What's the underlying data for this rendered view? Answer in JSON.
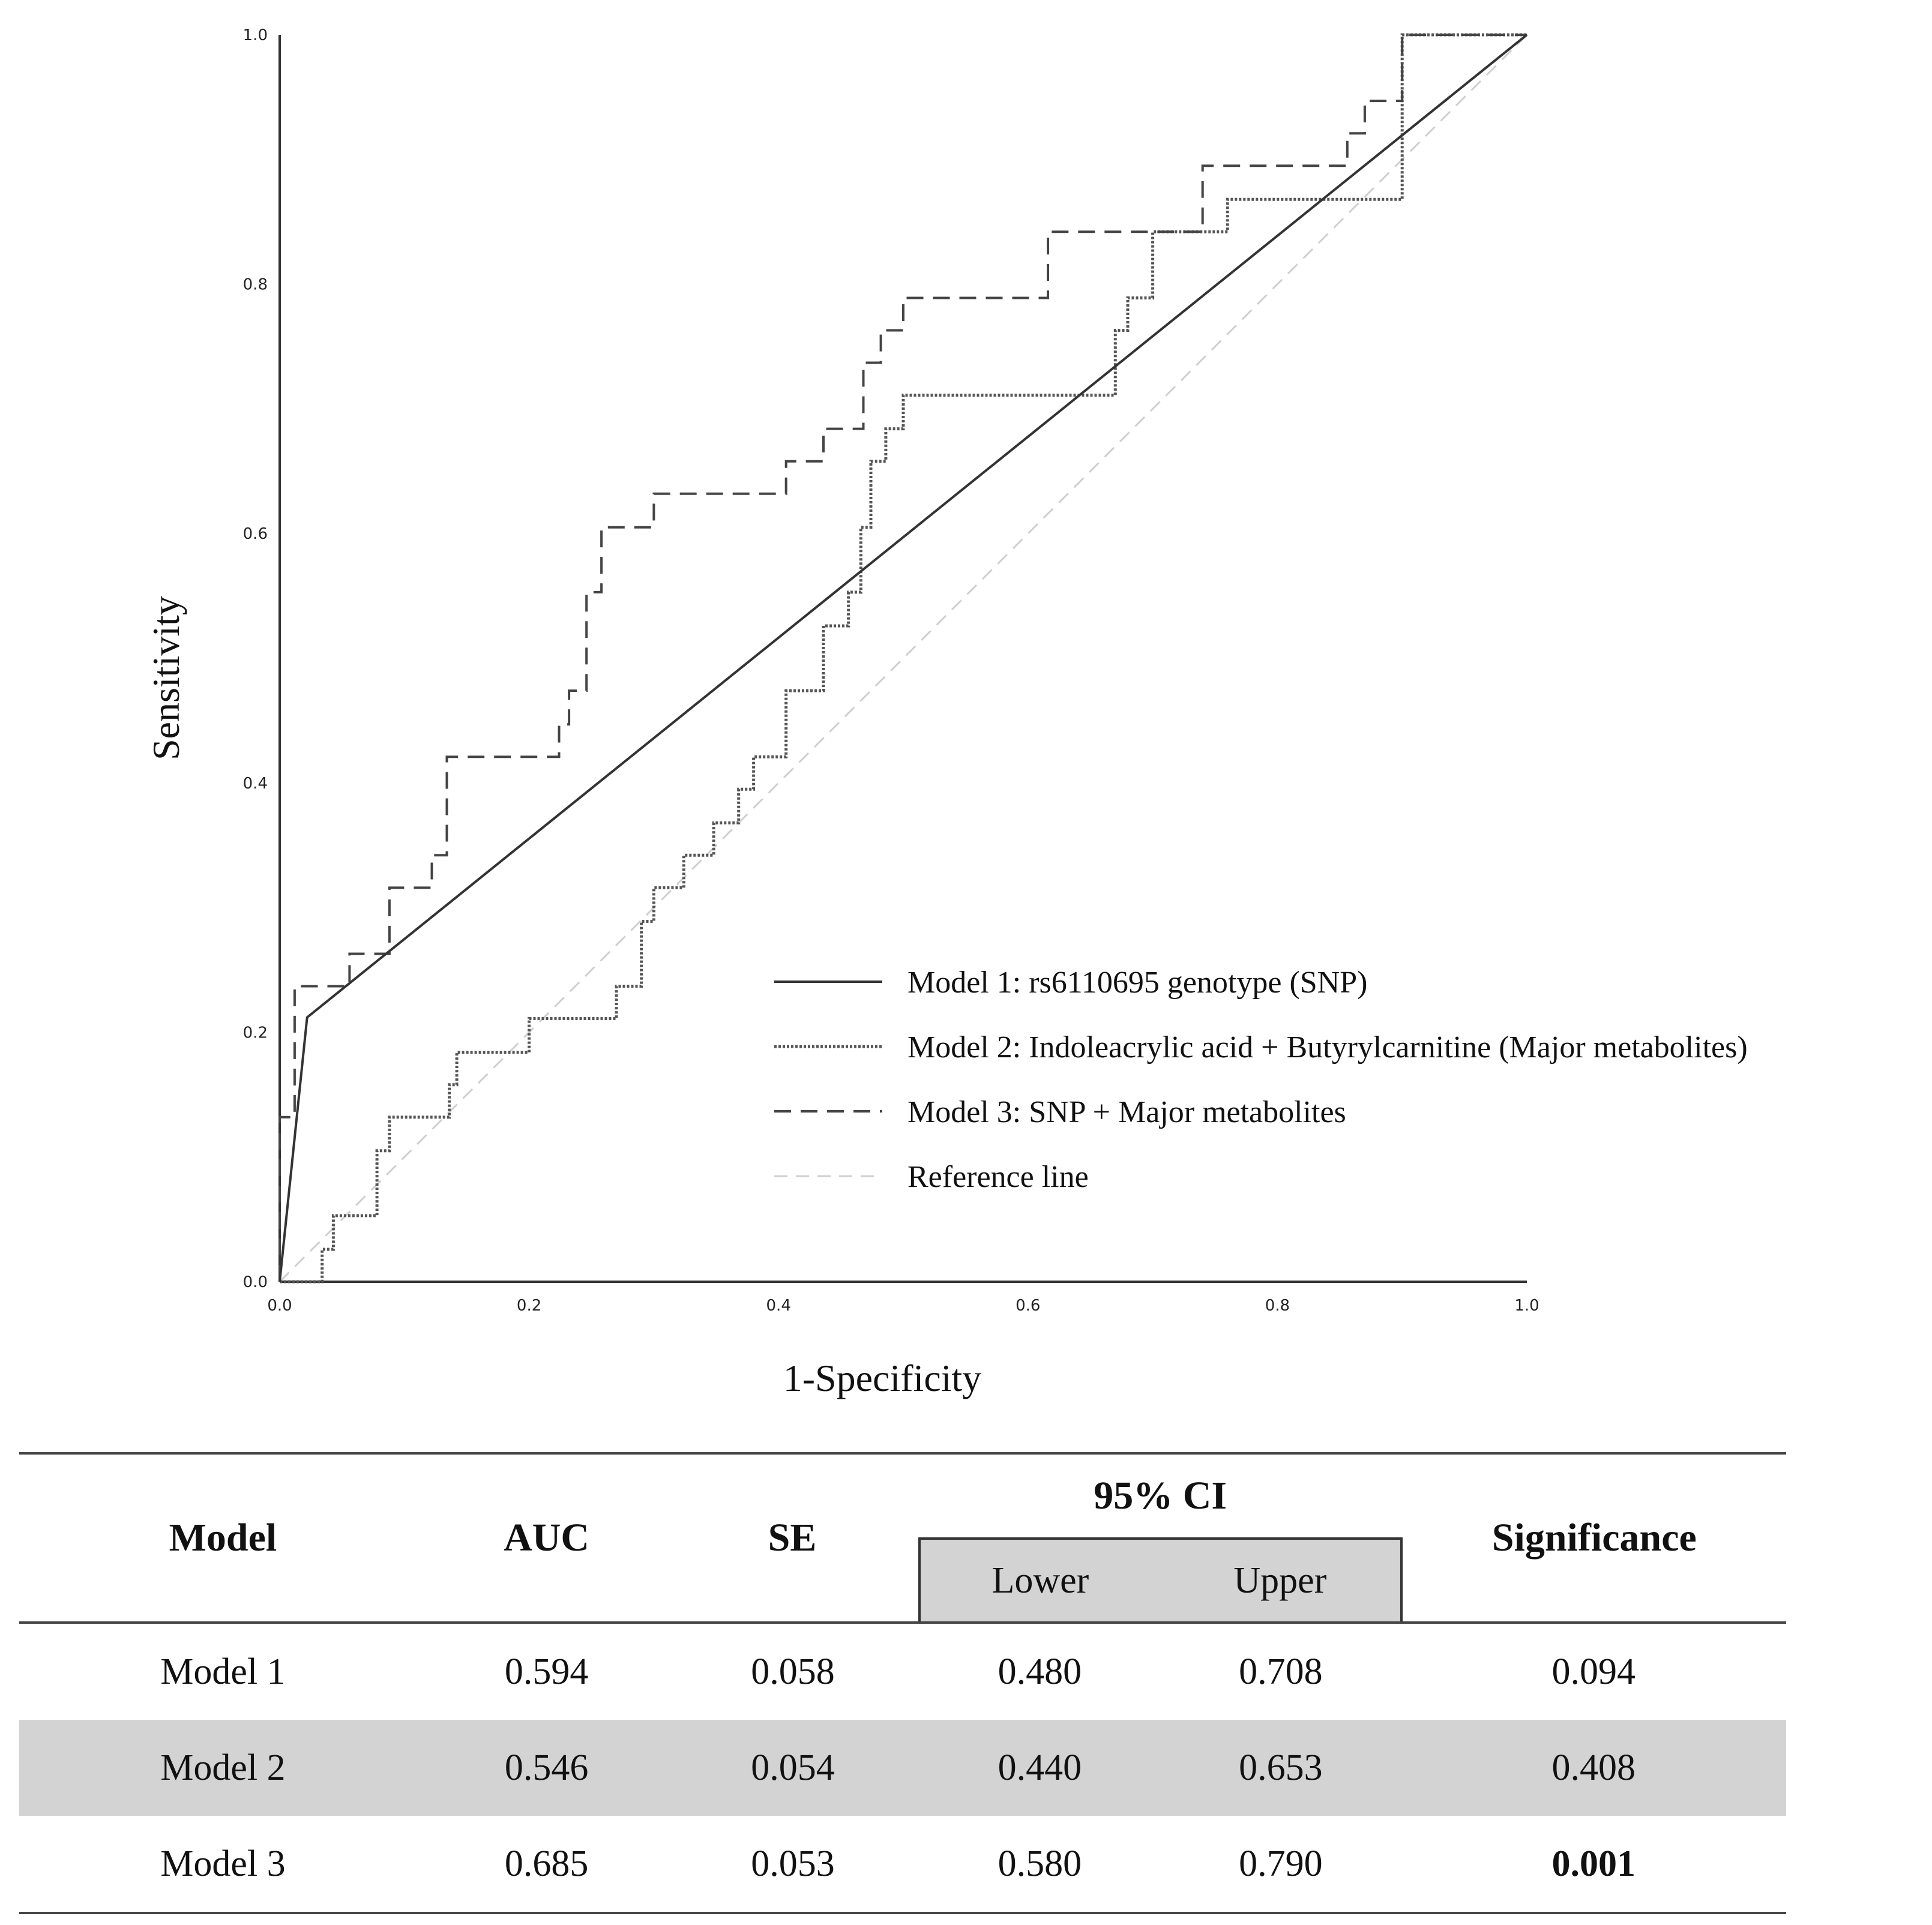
{
  "chart_data": {
    "type": "line",
    "title": "",
    "xlabel": "1-Specificity",
    "ylabel": "Sensitivity",
    "xlim": [
      0,
      1
    ],
    "ylim": [
      0,
      1
    ],
    "xticks": [
      "0.0",
      "0.2",
      "0.4",
      "0.6",
      "0.8",
      "1.0"
    ],
    "yticks": [
      "0.0",
      "0.2",
      "0.4",
      "0.6",
      "0.8",
      "1.0"
    ],
    "legend_position": "lower-right",
    "series": [
      {
        "name": "Model 1: rs6110695 genotype (SNP)",
        "style": "solid",
        "color": "#333333",
        "x": [
          0,
          0.022,
          1
        ],
        "y": [
          0,
          0.212,
          1
        ]
      },
      {
        "name": "Model 2: Indoleacrylic acid + Butyrylcarnitine (Major metabolites)",
        "style": "dotted",
        "color": "#555555",
        "x": [
          0,
          0.034,
          0.034,
          0.043,
          0.043,
          0.078,
          0.078,
          0.088,
          0.088,
          0.136,
          0.136,
          0.142,
          0.142,
          0.2,
          0.2,
          0.27,
          0.27,
          0.29,
          0.29,
          0.3,
          0.3,
          0.324,
          0.324,
          0.348,
          0.348,
          0.368,
          0.368,
          0.38,
          0.38,
          0.406,
          0.406,
          0.436,
          0.436,
          0.456,
          0.456,
          0.466,
          0.466,
          0.474,
          0.474,
          0.486,
          0.486,
          0.494,
          0.494,
          0.5,
          0.5,
          0.53,
          0.53,
          0.67,
          0.67,
          0.68,
          0.68,
          0.7,
          0.7,
          0.74,
          0.74,
          0.76,
          0.76,
          0.9,
          0.9,
          1
        ],
        "y": [
          0,
          0,
          0.026,
          0.026,
          0.053,
          0.053,
          0.105,
          0.105,
          0.132,
          0.132,
          0.158,
          0.158,
          0.184,
          0.184,
          0.211,
          0.211,
          0.237,
          0.237,
          0.289,
          0.289,
          0.316,
          0.316,
          0.342,
          0.342,
          0.368,
          0.368,
          0.395,
          0.395,
          0.421,
          0.421,
          0.474,
          0.474,
          0.526,
          0.526,
          0.553,
          0.553,
          0.605,
          0.605,
          0.658,
          0.658,
          0.684,
          0.684,
          0.684,
          0.684,
          0.711,
          0.711,
          0.711,
          0.711,
          0.763,
          0.763,
          0.789,
          0.789,
          0.842,
          0.842,
          0.842,
          0.842,
          0.868,
          0.868,
          1,
          1
        ]
      },
      {
        "name": "Model 3: SNP + Major metabolites",
        "style": "dashed",
        "color": "#444444",
        "x": [
          0,
          0,
          0.012,
          0.012,
          0.024,
          0.024,
          0.056,
          0.056,
          0.088,
          0.088,
          0.122,
          0.122,
          0.134,
          0.134,
          0.224,
          0.224,
          0.232,
          0.232,
          0.246,
          0.246,
          0.258,
          0.258,
          0.3,
          0.3,
          0.406,
          0.406,
          0.436,
          0.436,
          0.468,
          0.468,
          0.482,
          0.482,
          0.5,
          0.5,
          0.514,
          0.514,
          0.616,
          0.616,
          0.74,
          0.74,
          0.856,
          0.856,
          0.87,
          0.87,
          0.9,
          0.9,
          0.912,
          0.912,
          1
        ],
        "y": [
          0,
          0.132,
          0.132,
          0.237,
          0.237,
          0.237,
          0.237,
          0.263,
          0.263,
          0.316,
          0.316,
          0.342,
          0.342,
          0.421,
          0.421,
          0.447,
          0.447,
          0.474,
          0.474,
          0.553,
          0.553,
          0.605,
          0.605,
          0.632,
          0.632,
          0.658,
          0.658,
          0.684,
          0.684,
          0.737,
          0.737,
          0.763,
          0.763,
          0.789,
          0.789,
          0.789,
          0.789,
          0.842,
          0.842,
          0.895,
          0.895,
          0.921,
          0.921,
          0.947,
          0.947,
          1,
          1,
          1,
          1
        ]
      },
      {
        "name": "Reference line",
        "style": "dashed",
        "color": "#cfcfcf",
        "x": [
          0,
          1
        ],
        "y": [
          0,
          1
        ]
      }
    ]
  },
  "table": {
    "headers": {
      "model": "Model",
      "auc": "AUC",
      "se": "SE",
      "ci": "95% CI",
      "lower": "Lower",
      "upper": "Upper",
      "significance": "Significance"
    },
    "rows": [
      {
        "model": "Model 1",
        "auc": "0.594",
        "se": "0.058",
        "lower": "0.480",
        "upper": "0.708",
        "significance": "0.094"
      },
      {
        "model": "Model 2",
        "auc": "0.546",
        "se": "0.054",
        "lower": "0.440",
        "upper": "0.653",
        "significance": "0.408"
      },
      {
        "model": "Model 3",
        "auc": "0.685",
        "se": "0.053",
        "lower": "0.580",
        "upper": "0.790",
        "significance": "0.001"
      }
    ]
  }
}
